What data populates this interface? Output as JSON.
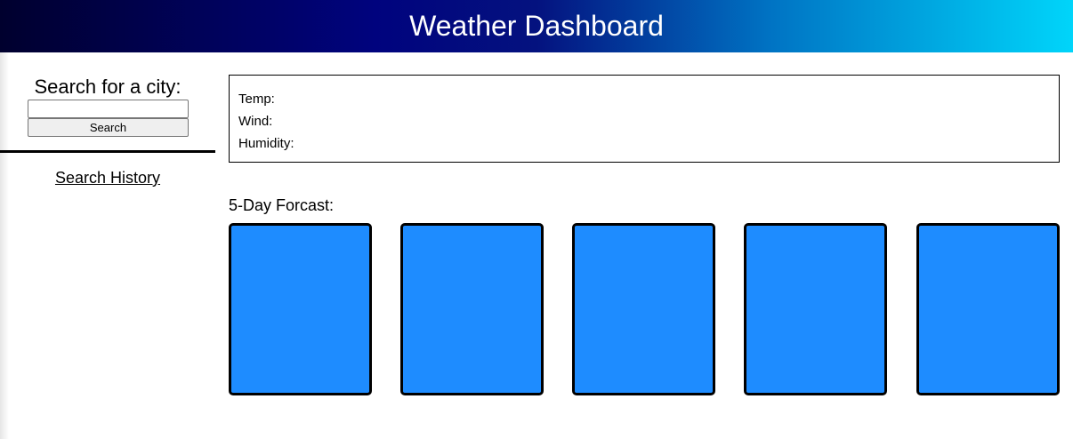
{
  "header": {
    "title": "Weather Dashboard"
  },
  "sidebar": {
    "search_label": "Search for a city:",
    "search_value": "",
    "search_button": "Search",
    "history_label": "Search History"
  },
  "current": {
    "temp_label": "Temp:",
    "wind_label": "Wind:",
    "humidity_label": "Humidity:"
  },
  "forecast": {
    "title": "5-Day Forcast:",
    "card_color": "#1e8cff"
  },
  "colors": {
    "header_start": "#00002e",
    "header_end": "#00d5fa"
  }
}
